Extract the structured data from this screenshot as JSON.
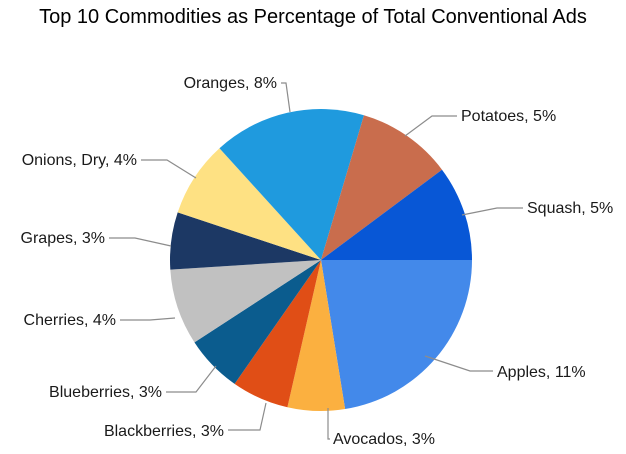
{
  "chart_data": {
    "type": "pie",
    "title": "Top 10 Commodities as Percentage of Total Conventional Ads",
    "start_angle_deg": 0,
    "direction": "clockwise",
    "slices": [
      {
        "label": "Apples",
        "value": 11,
        "display": "Apples, 11%",
        "color": "#4389ea"
      },
      {
        "label": "Avocados",
        "value": 3,
        "display": "Avocados, 3%",
        "color": "#fbb040"
      },
      {
        "label": "Blackberries",
        "value": 3,
        "display": "Blackberries, 3%",
        "color": "#e04e16"
      },
      {
        "label": "Blueberries",
        "value": 3,
        "display": "Blueberries, 3%",
        "color": "#0b5c8e"
      },
      {
        "label": "Cherries",
        "value": 4,
        "display": "Cherries, 4%",
        "color": "#c1c1c1"
      },
      {
        "label": "Grapes",
        "value": 3,
        "display": "Grapes, 3%",
        "color": "#1c3864"
      },
      {
        "label": "Onions, Dry",
        "value": 4,
        "display": "Onions, Dry, 4%",
        "color": "#fee183"
      },
      {
        "label": "Oranges",
        "value": 8,
        "display": "Oranges, 8%",
        "color": "#1f9ade"
      },
      {
        "label": "Potatoes",
        "value": 5,
        "display": "Potatoes, 5%",
        "color": "#c96d4d"
      },
      {
        "label": "Squash",
        "value": 5,
        "display": "Squash, 5%",
        "color": "#0857d6"
      }
    ]
  }
}
